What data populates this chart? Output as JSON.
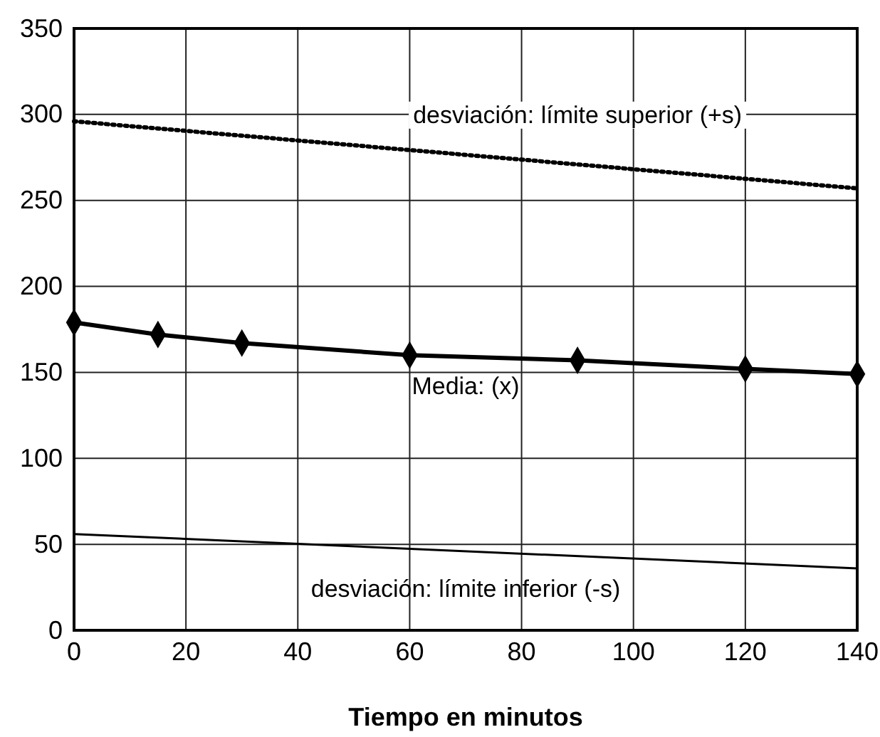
{
  "chart_data": {
    "type": "line",
    "xlabel": "Tiempo en minutos",
    "xlim": [
      0,
      140
    ],
    "xticks": [
      0,
      20,
      40,
      60,
      80,
      100,
      120,
      140
    ],
    "ylim": [
      0,
      350
    ],
    "yticks": [
      0,
      50,
      100,
      150,
      200,
      250,
      300,
      350
    ],
    "grid": true,
    "series": [
      {
        "name": "desviación: límite superior (+s)",
        "color": "#000000",
        "x": [
          0,
          140
        ],
        "values": [
          296,
          257
        ],
        "line_style": "dotted",
        "marker": "none"
      },
      {
        "name": "Media: (x)",
        "color": "#000000",
        "x": [
          0,
          15,
          30,
          60,
          90,
          120,
          140
        ],
        "values": [
          179,
          172,
          167,
          160,
          157,
          152,
          149
        ],
        "line_style": "solid",
        "marker": "diamond"
      },
      {
        "name": "desviación: límite inferior (-s)",
        "color": "#000000",
        "x": [
          0,
          140
        ],
        "values": [
          56,
          36
        ],
        "line_style": "solid",
        "marker": "none"
      }
    ]
  }
}
